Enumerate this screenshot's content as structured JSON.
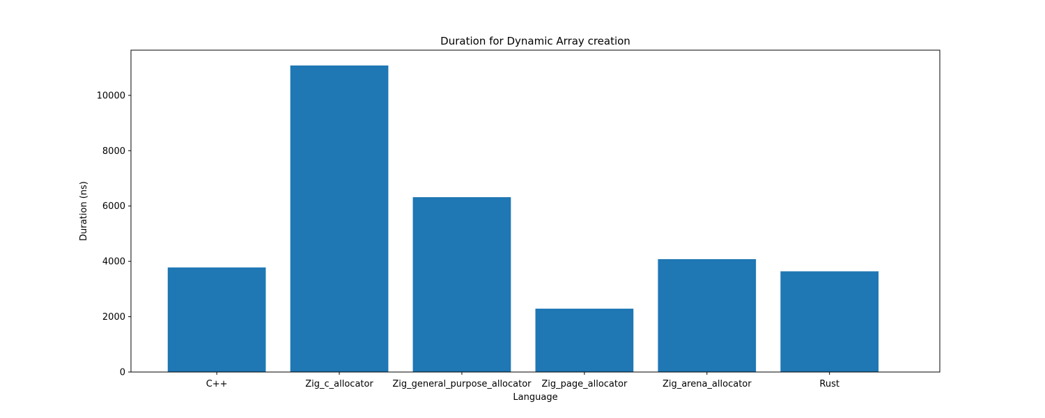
{
  "chart_data": {
    "type": "bar",
    "title": "Duration for Dynamic Array creation",
    "xlabel": "Language",
    "ylabel": "Duration (ns)",
    "categories": [
      "C++",
      "Zig_c_allocator",
      "Zig_general_purpose_allocator",
      "Zig_page_allocator",
      "Zig_arena_allocator",
      "Rust"
    ],
    "values": [
      3780,
      11080,
      6320,
      2290,
      4080,
      3640
    ],
    "ylim": [
      0,
      11634
    ],
    "yticks": [
      0,
      2000,
      4000,
      6000,
      8000,
      10000
    ],
    "ytick_labels": [
      "0",
      "2000",
      "4000",
      "6000",
      "8000",
      "10000"
    ],
    "grid": false,
    "bar_color": "#1f77b4"
  }
}
